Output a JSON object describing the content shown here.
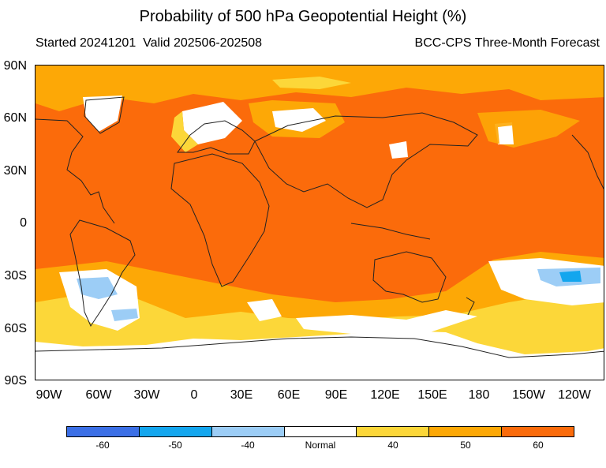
{
  "title": "Probability of 500 hPa Geopotential Height (%)",
  "subtitle_left": "Started 20241201  Valid 202506-202508",
  "subtitle_right": "BCC-CPS Three-Month Forecast",
  "lat_labels": [
    "90N",
    "60N",
    "30N",
    "0",
    "30S",
    "60S",
    "90S"
  ],
  "lon_labels": [
    "90W",
    "60W",
    "30W",
    "0",
    "30E",
    "60E",
    "90E",
    "120E",
    "150E",
    "180",
    "150W",
    "120W"
  ],
  "legend": {
    "labels": [
      "-60",
      "-50",
      "-40",
      "Normal",
      "40",
      "50",
      "60"
    ],
    "colors": [
      "#3b6fe6",
      "#13a6ee",
      "#9ccdf6",
      "#ffffff",
      "#fcd739",
      "#fda806",
      "#fb6b0b"
    ]
  },
  "map": {
    "base_category": "60",
    "regions": [
      {
        "category": "50",
        "area": "Arctic belt"
      },
      {
        "category": "50",
        "area": "Southern Ocean belt"
      },
      {
        "category": "40",
        "area": "Southern Ocean belt"
      },
      {
        "category": "Normal",
        "area": "Antarctica"
      },
      {
        "category": "Normal",
        "area": "Greenland"
      },
      {
        "category": "Normal",
        "area": "Europe"
      },
      {
        "category": "Normal",
        "area": "Western Siberia"
      },
      {
        "category": "Normal",
        "area": "Southern South America"
      },
      {
        "category": "Normal",
        "area": "South Pacific"
      },
      {
        "category": "-40",
        "area": "South Pacific"
      },
      {
        "category": "-40",
        "area": "Southern South America"
      },
      {
        "category": "-50",
        "area": "South Pacific"
      }
    ]
  }
}
